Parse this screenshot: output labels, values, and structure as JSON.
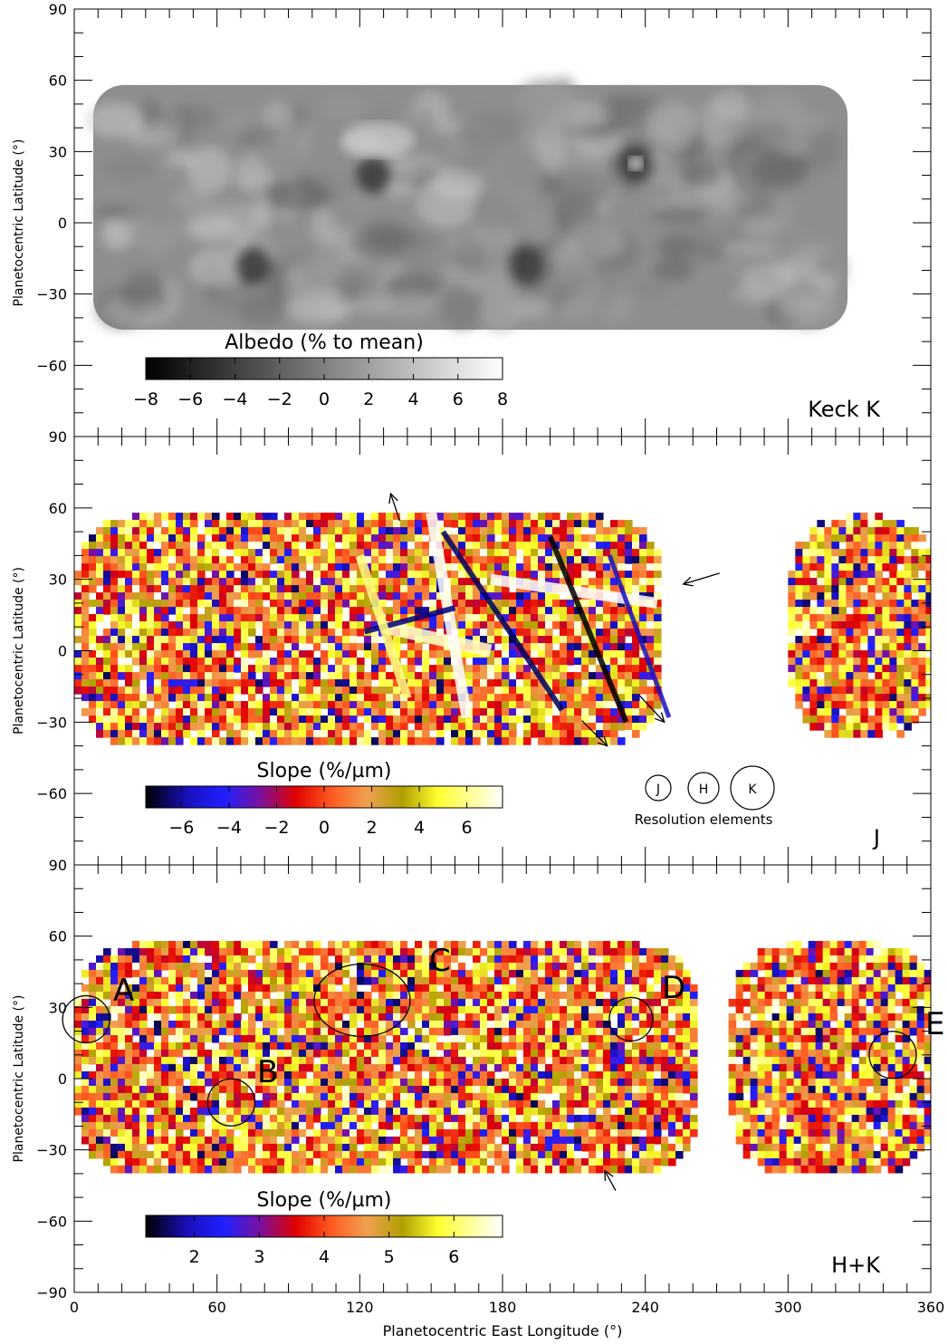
{
  "chart_data": [
    {
      "type": "heatmap",
      "panel_label": "Keck K",
      "colorbar": {
        "label": "Albedo (% to mean)",
        "ticks": [
          "−8",
          "−6",
          "−4",
          "−2",
          "0",
          "2",
          "4",
          "6",
          "8"
        ],
        "range": [
          -8,
          8
        ],
        "colormap": "gray"
      },
      "ylabel": "Planetocentric Latitude (°)",
      "ylim": [
        -90,
        90
      ],
      "yticks": [
        "90",
        "60",
        "30",
        "0",
        "−30",
        "−60"
      ],
      "xlim": [
        0,
        360
      ],
      "coverage": [
        {
          "lon": [
            8,
            325
          ],
          "lat": [
            -45,
            58
          ]
        }
      ],
      "features": {
        "dark_spots": [
          {
            "lon": 126,
            "lat": 20
          },
          {
            "lon": 236,
            "lat": 25
          },
          {
            "lon": 75,
            "lat": -18
          },
          {
            "lon": 190,
            "lat": -18
          }
        ]
      }
    },
    {
      "type": "heatmap",
      "panel_label": "J",
      "colorbar": {
        "label": "Slope (%/µm)",
        "ticks": [
          "−6",
          "−4",
          "−2",
          "0",
          "2",
          "4",
          "6"
        ],
        "range": [
          -7.5,
          7.5
        ],
        "colormap": "black-blue-red-orange-yellow-white"
      },
      "ylabel": "Planetocentric Latitude (°)",
      "ylim": [
        -90,
        90
      ],
      "yticks": [
        "90",
        "60",
        "30",
        "0",
        "−30",
        "−60"
      ],
      "xlim": [
        0,
        360
      ],
      "coverage": [
        {
          "lon": [
            0,
            245
          ],
          "lat": [
            -38,
            58
          ]
        },
        {
          "lon": [
            300,
            360
          ],
          "lat": [
            -35,
            58
          ]
        }
      ],
      "resolution_elements": {
        "labels": [
          "J",
          "H",
          "K"
        ],
        "caption": "Resolution elements"
      },
      "arrows": [
        {
          "lon": 133,
          "lat": 66
        },
        {
          "lon": 256,
          "lat": 28
        },
        {
          "lon": 248,
          "lat": -30
        },
        {
          "lon": 224,
          "lat": -40
        }
      ]
    },
    {
      "type": "heatmap",
      "panel_label": "H+K",
      "colorbar": {
        "label": "Slope (%/µm)",
        "ticks": [
          "2",
          "3",
          "4",
          "5",
          "6"
        ],
        "range": [
          1.25,
          6.75
        ],
        "colormap": "black-blue-red-orange-yellow-white"
      },
      "ylabel": "Planetocentric Latitude (°)",
      "xlabel": "Planetocentric East Longitude (°)",
      "ylim": [
        -90,
        90
      ],
      "yticks": [
        "90",
        "60",
        "30",
        "0",
        "−30",
        "−60",
        "−90"
      ],
      "xlim": [
        0,
        360
      ],
      "xticks": [
        "0",
        "60",
        "120",
        "180",
        "240",
        "300",
        "360"
      ],
      "coverage": [
        {
          "lon": [
            0,
            260
          ],
          "lat": [
            -38,
            58
          ]
        },
        {
          "lon": [
            275,
            360
          ],
          "lat": [
            -38,
            58
          ]
        }
      ],
      "regions": [
        {
          "label": "A",
          "lon": 5,
          "lat": 25
        },
        {
          "label": "B",
          "lon": 66,
          "lat": -10
        },
        {
          "label": "C",
          "lon": 150,
          "lat": 48
        },
        {
          "label": "D",
          "lon": 234,
          "lat": 25
        },
        {
          "label": "E",
          "lon": 344,
          "lat": 10
        }
      ],
      "arrows": [
        {
          "lon": 223,
          "lat": -38
        }
      ]
    }
  ]
}
